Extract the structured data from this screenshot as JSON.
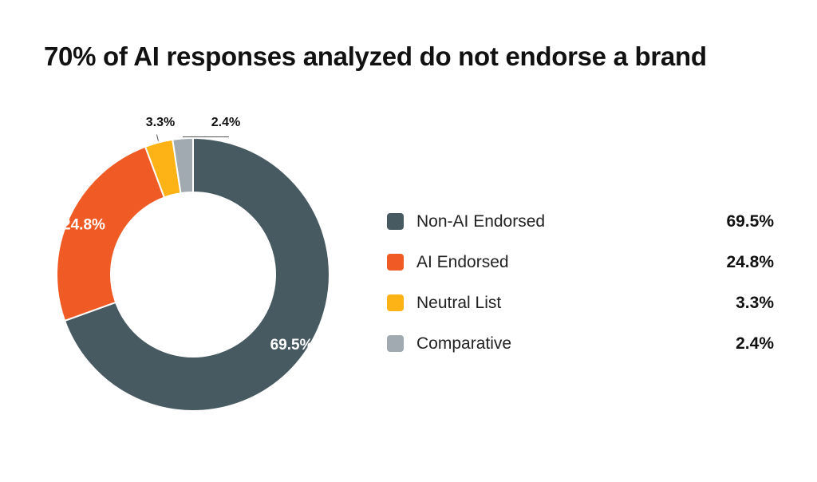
{
  "chart_data": {
    "type": "pie",
    "title": "70% of AI responses analyzed do not endorse a brand",
    "donut": true,
    "legend_position": "right",
    "slices": [
      {
        "label": "Non-AI Endorsed",
        "value": 69.5,
        "display": "69.5%",
        "color": "#475961"
      },
      {
        "label": "AI Endorsed",
        "value": 24.8,
        "display": "24.8%",
        "color": "#F05A24"
      },
      {
        "label": "Neutral List",
        "value": 3.3,
        "display": "3.3%",
        "color": "#FDB316"
      },
      {
        "label": "Comparative",
        "value": 2.4,
        "display": "2.4%",
        "color": "#A0AAB0"
      }
    ]
  }
}
